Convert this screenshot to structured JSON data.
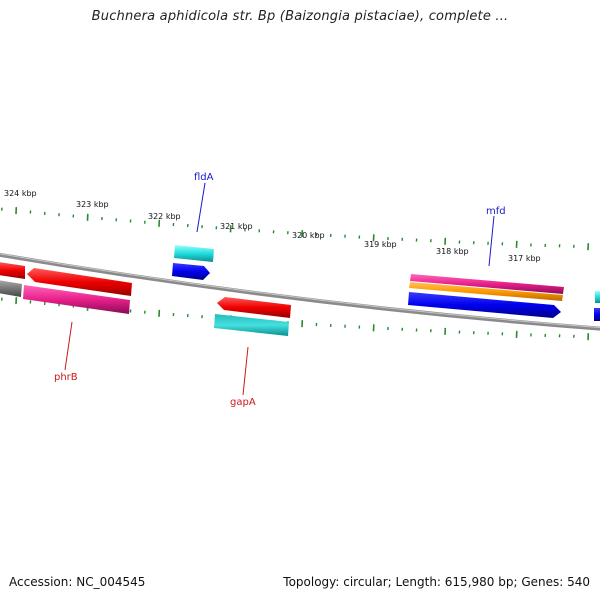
{
  "title": "Buchnera aphidicola str. Bp (Baizongia pistaciae), complete ...",
  "footer": {
    "accession": "Accession: NC_004545",
    "summary": "Topology: circular; Length: 615,980 bp; Genes: 540"
  },
  "colors": {
    "backbone": "#7a7a7a",
    "tick": "#2a8a2a",
    "label_forward": "#1a1acc",
    "label_reverse": "#cc1a1a"
  },
  "scale_labels": [
    "324 kbp",
    "323 kbp",
    "322 kbp",
    "321 kbp",
    "320 kbp",
    "319 kbp",
    "318 kbp",
    "317 kbp"
  ],
  "gene_labels": [
    {
      "name": "fldA",
      "strand": "forward"
    },
    {
      "name": "mfd",
      "strand": "forward"
    },
    {
      "name": "phrB",
      "strand": "reverse"
    },
    {
      "name": "gapA",
      "strand": "reverse"
    }
  ]
}
